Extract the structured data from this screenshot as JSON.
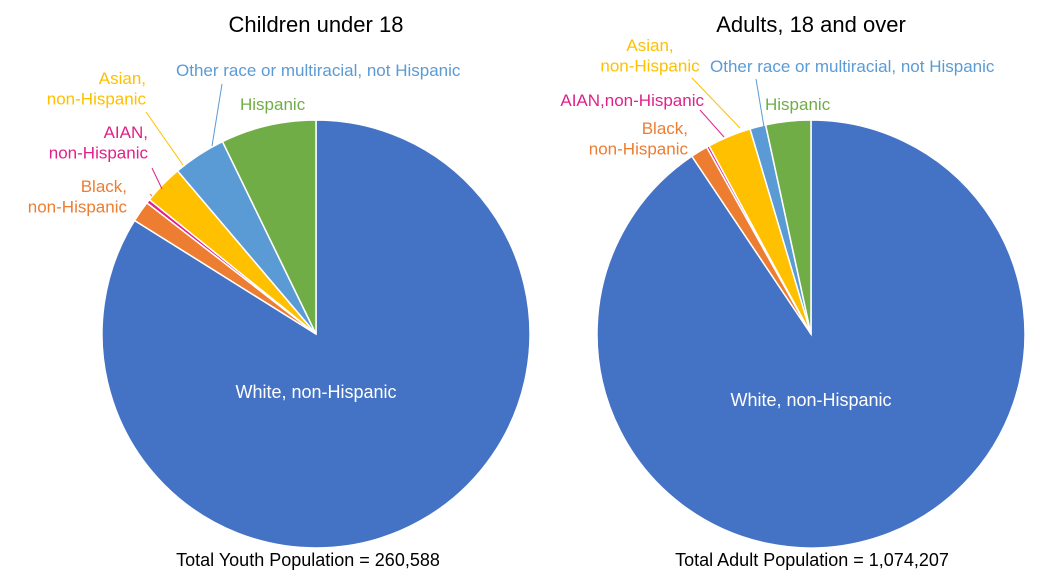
{
  "chart_data": [
    {
      "type": "pie",
      "title": "Children under 18",
      "footer": "Total Youth Population = 260,588",
      "categories": [
        "White, non-Hispanic",
        "Black, non-Hispanic",
        "AIAN, non-Hispanic",
        "Asian, non-Hispanic",
        "Other race or multiracial, not Hispanic",
        "Hispanic"
      ],
      "values": [
        83.9,
        1.6,
        0.3,
        3.0,
        4.0,
        7.2
      ],
      "colors": [
        "#4472C4",
        "#ED7D31",
        "#E0218A",
        "#FFC000",
        "#5B9BD5",
        "#70AD47"
      ],
      "labels": [
        [
          "White, non-Hispanic"
        ],
        [
          "Black,",
          "non-Hispanic"
        ],
        [
          "AIAN,",
          "non-Hispanic"
        ],
        [
          "Asian,",
          "non-Hispanic"
        ],
        [
          "Other race or multiracial, not Hispanic"
        ],
        [
          "Hispanic"
        ]
      ]
    },
    {
      "type": "pie",
      "title": "Adults, 18 and over",
      "footer": "Total Adult Population = 1,074,207",
      "categories": [
        "White, non-Hispanic",
        "Black, non-Hispanic",
        "AIAN, non-Hispanic",
        "Asian, non-Hispanic",
        "Other race or multiracial, not Hispanic",
        "Hispanic"
      ],
      "values": [
        90.6,
        1.3,
        0.2,
        3.3,
        1.2,
        3.4
      ],
      "colors": [
        "#4472C4",
        "#ED7D31",
        "#E0218A",
        "#FFC000",
        "#5B9BD5",
        "#70AD47"
      ],
      "labels": [
        [
          "White, non-Hispanic"
        ],
        [
          "Black,",
          "non-Hispanic"
        ],
        [
          "AIAN,non-Hispanic"
        ],
        [
          "Asian,",
          "non-Hispanic"
        ],
        [
          "Other race or multiracial, not Hispanic"
        ],
        [
          "Hispanic"
        ]
      ]
    }
  ]
}
